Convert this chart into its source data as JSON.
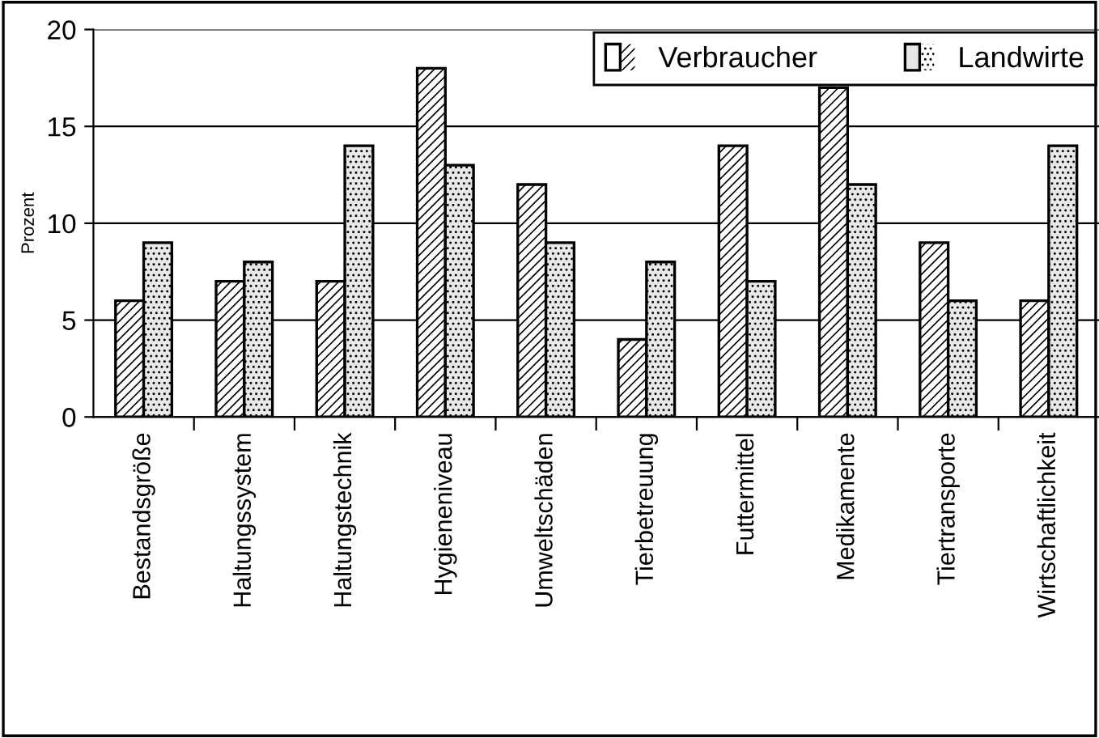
{
  "chart_data": {
    "type": "bar",
    "ylabel": "Prozent",
    "categories": [
      "Bestandsgröße",
      "Haltungssystem",
      "Haltungstechnik",
      "Hygieneniveau",
      "Umweltschäden",
      "Tierbetreuung",
      "Futtermittel",
      "Medikamente",
      "Tiertransporte",
      "Wirtschaftlichkeit"
    ],
    "series": [
      {
        "name": "Verbraucher",
        "color": "#ffffff",
        "values": [
          6,
          7,
          7,
          18,
          12,
          4,
          14,
          17,
          9,
          6
        ]
      },
      {
        "name": "Landwirte",
        "color": "#e8e8e8",
        "values": [
          9,
          8,
          14,
          13,
          9,
          8,
          7,
          12,
          6,
          14
        ]
      }
    ],
    "ylim": [
      0,
      20
    ],
    "yticks": [
      0,
      5,
      10,
      15,
      20
    ],
    "grid": "y",
    "legend": "top right"
  }
}
